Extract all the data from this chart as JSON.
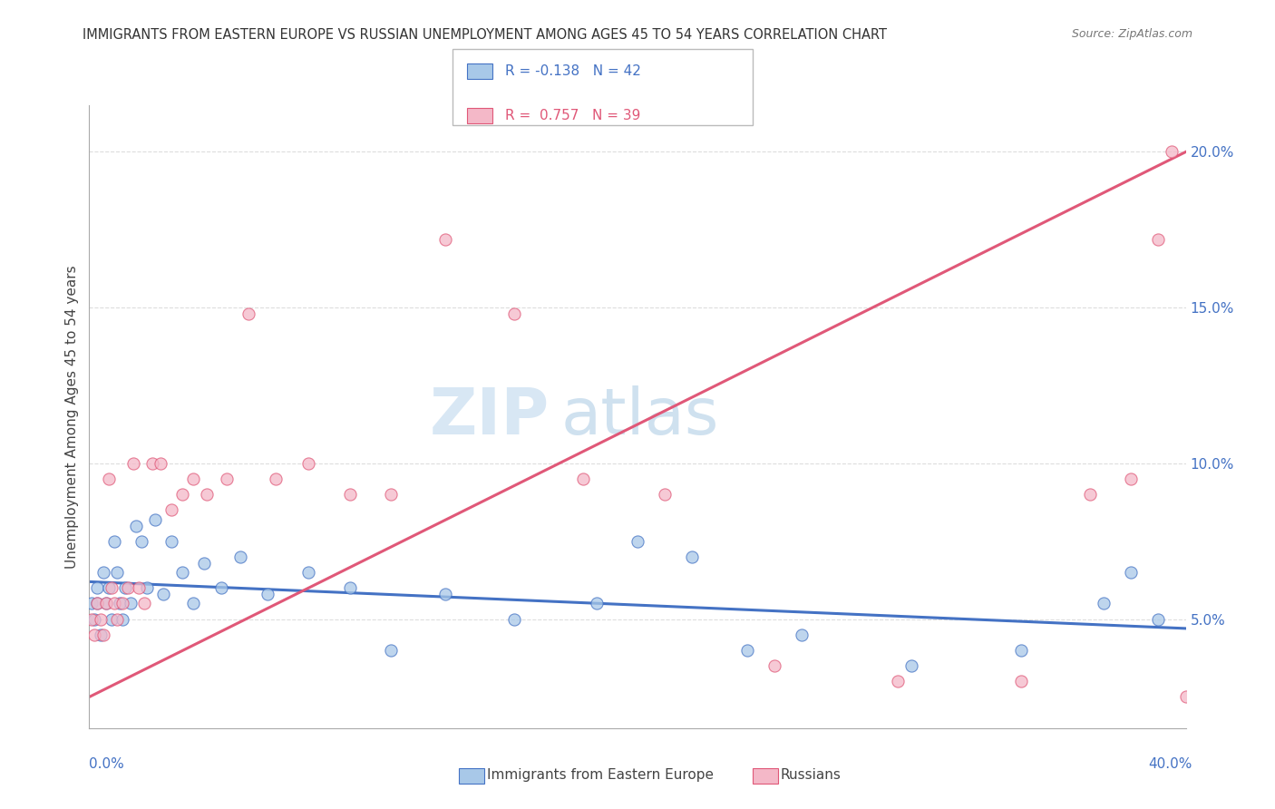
{
  "title": "IMMIGRANTS FROM EASTERN EUROPE VS RUSSIAN UNEMPLOYMENT AMONG AGES 45 TO 54 YEARS CORRELATION CHART",
  "source": "Source: ZipAtlas.com",
  "ylabel": "Unemployment Among Ages 45 to 54 years",
  "legend1_label": "Immigrants from Eastern Europe",
  "legend2_label": "Russians",
  "R1": -0.138,
  "N1": 42,
  "R2": 0.757,
  "N2": 39,
  "blue_color": "#a8c8e8",
  "pink_color": "#f4b8c8",
  "blue_line_color": "#4472c4",
  "pink_line_color": "#e05878",
  "watermark_color": "#d8e8f4",
  "xlim": [
    0.0,
    0.4
  ],
  "ylim": [
    0.015,
    0.215
  ],
  "grid_color": "#dddddd",
  "axis_color": "#aaaaaa",
  "blue_x": [
    0.001,
    0.002,
    0.003,
    0.003,
    0.004,
    0.005,
    0.006,
    0.007,
    0.008,
    0.009,
    0.01,
    0.011,
    0.012,
    0.013,
    0.015,
    0.017,
    0.019,
    0.021,
    0.024,
    0.027,
    0.03,
    0.034,
    0.038,
    0.042,
    0.048,
    0.055,
    0.065,
    0.08,
    0.095,
    0.11,
    0.13,
    0.155,
    0.185,
    0.22,
    0.26,
    0.3,
    0.34,
    0.37,
    0.38,
    0.39,
    0.2,
    0.24
  ],
  "blue_y": [
    0.055,
    0.05,
    0.06,
    0.055,
    0.045,
    0.065,
    0.055,
    0.06,
    0.05,
    0.075,
    0.065,
    0.055,
    0.05,
    0.06,
    0.055,
    0.08,
    0.075,
    0.06,
    0.082,
    0.058,
    0.075,
    0.065,
    0.055,
    0.068,
    0.06,
    0.07,
    0.058,
    0.065,
    0.06,
    0.04,
    0.058,
    0.05,
    0.055,
    0.07,
    0.045,
    0.035,
    0.04,
    0.055,
    0.065,
    0.05,
    0.075,
    0.04
  ],
  "pink_x": [
    0.001,
    0.002,
    0.003,
    0.004,
    0.005,
    0.006,
    0.007,
    0.008,
    0.009,
    0.01,
    0.012,
    0.014,
    0.016,
    0.018,
    0.02,
    0.023,
    0.026,
    0.03,
    0.034,
    0.038,
    0.043,
    0.05,
    0.058,
    0.068,
    0.08,
    0.095,
    0.11,
    0.13,
    0.155,
    0.18,
    0.21,
    0.25,
    0.295,
    0.34,
    0.365,
    0.38,
    0.39,
    0.395,
    0.4
  ],
  "pink_y": [
    0.05,
    0.045,
    0.055,
    0.05,
    0.045,
    0.055,
    0.095,
    0.06,
    0.055,
    0.05,
    0.055,
    0.06,
    0.1,
    0.06,
    0.055,
    0.1,
    0.1,
    0.085,
    0.09,
    0.095,
    0.09,
    0.095,
    0.148,
    0.095,
    0.1,
    0.09,
    0.09,
    0.172,
    0.148,
    0.095,
    0.09,
    0.035,
    0.03,
    0.03,
    0.09,
    0.095,
    0.172,
    0.2,
    0.025
  ],
  "blue_trend_start_y": 0.062,
  "blue_trend_end_y": 0.047,
  "pink_trend_start_y": 0.025,
  "pink_trend_end_y": 0.2
}
